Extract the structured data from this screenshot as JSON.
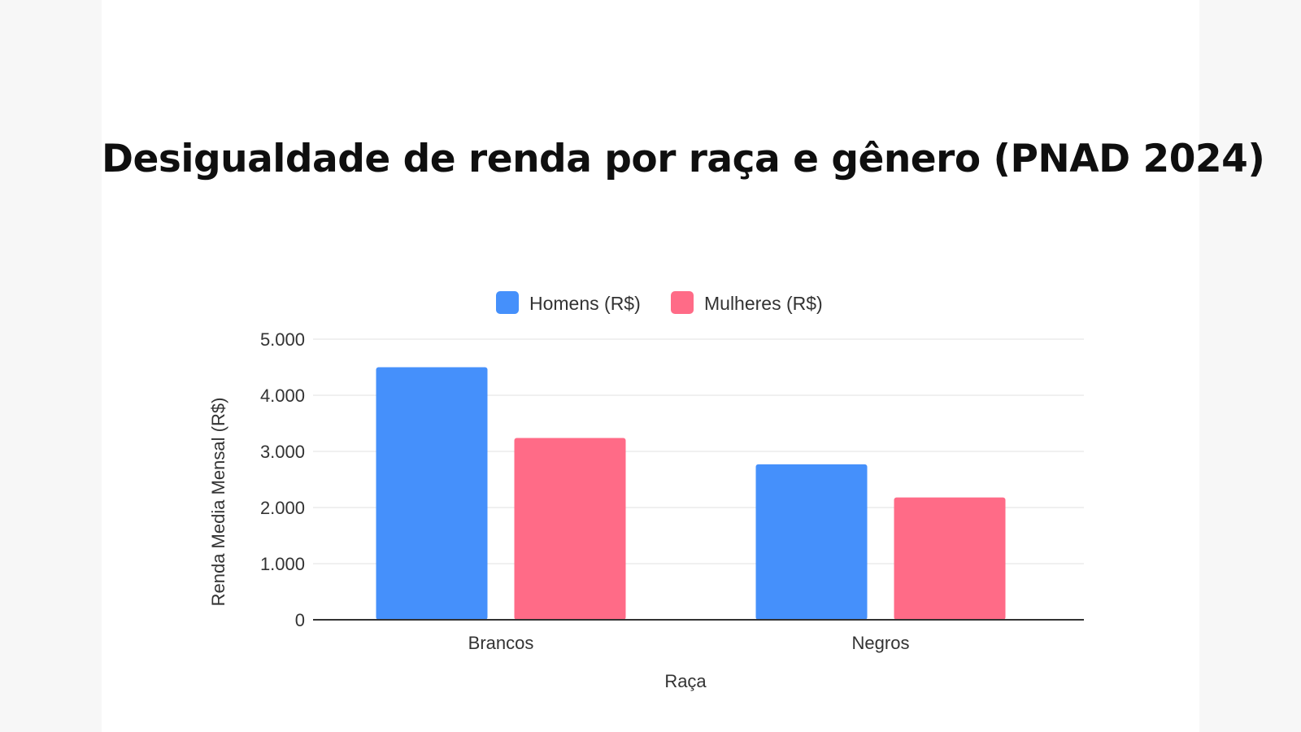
{
  "colors": {
    "homens": "#4590fb",
    "mulheres": "#ff6b87",
    "grid": "#e6e6e6",
    "axis": "#333333"
  },
  "chart_data": {
    "type": "bar",
    "title": "Desigualdade de renda por raça  e gênero (PNAD 2024)",
    "xlabel": "Raça",
    "ylabel": "Renda Media Mensal (R$)",
    "categories": [
      "Brancos",
      "Negros"
    ],
    "series": [
      {
        "name": "Homens (R$)",
        "values": [
          4500,
          2770
        ]
      },
      {
        "name": "Mulheres (R$)",
        "values": [
          3240,
          2180
        ]
      }
    ],
    "ylim": [
      0,
      5000
    ],
    "yticks": [
      0,
      1000,
      2000,
      3000,
      4000,
      5000
    ],
    "ytick_labels": [
      "0",
      "1.000",
      "2.000",
      "3.000",
      "4.000",
      "5.000"
    ],
    "grid": true,
    "legend_position": "top-center"
  }
}
